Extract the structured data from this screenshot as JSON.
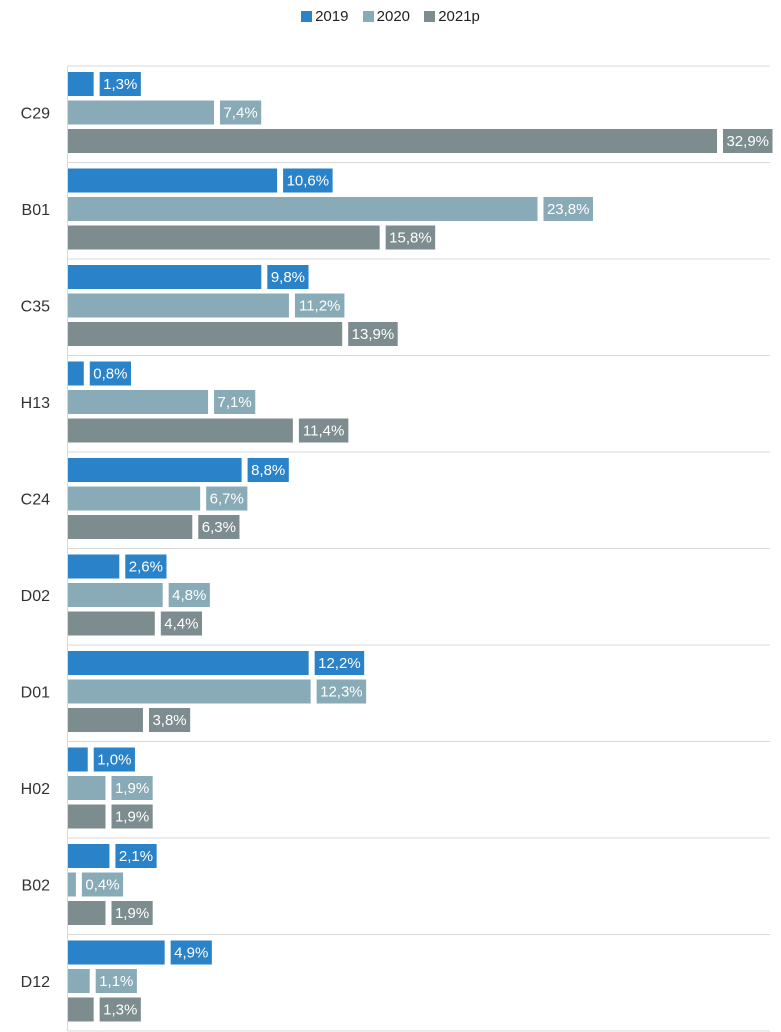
{
  "chart_data": {
    "type": "bar",
    "orientation": "horizontal",
    "categories": [
      "C29",
      "B01",
      "C35",
      "H13",
      "C24",
      "D02",
      "D01",
      "H02",
      "B02",
      "D12"
    ],
    "series": [
      {
        "name": "2019",
        "color": "#2a82c8",
        "values": [
          1.3,
          10.6,
          9.8,
          0.8,
          8.8,
          2.6,
          12.2,
          1.0,
          2.1,
          4.9
        ],
        "labels": [
          "1,3%",
          "10,6%",
          "9,8%",
          "0,8%",
          "8,8%",
          "2,6%",
          "12,2%",
          "1,0%",
          "2,1%",
          "4,9%"
        ]
      },
      {
        "name": "2020",
        "color": "#88abb7",
        "values": [
          7.4,
          23.8,
          11.2,
          7.1,
          6.7,
          4.8,
          12.3,
          1.9,
          0.4,
          1.1
        ],
        "labels": [
          "7,4%",
          "23,8%",
          "11,2%",
          "7,1%",
          "6,7%",
          "4,8%",
          "12,3%",
          "1,9%",
          "0,4%",
          "1,1%"
        ]
      },
      {
        "name": "2021p",
        "color": "#7d8c8e",
        "values": [
          32.9,
          15.8,
          13.9,
          11.4,
          6.3,
          4.4,
          3.8,
          1.9,
          1.9,
          1.3
        ],
        "labels": [
          "32,9%",
          "15,8%",
          "13,9%",
          "11,4%",
          "6,3%",
          "4,4%",
          "3,8%",
          "1,9%",
          "1,9%",
          "1,3%"
        ]
      }
    ],
    "xlim": [
      0,
      32.9
    ],
    "legend_position": "top",
    "data_labels": "inside-right of bar, white text on series-colored box",
    "gridlines": "horizontal separators between categories"
  }
}
